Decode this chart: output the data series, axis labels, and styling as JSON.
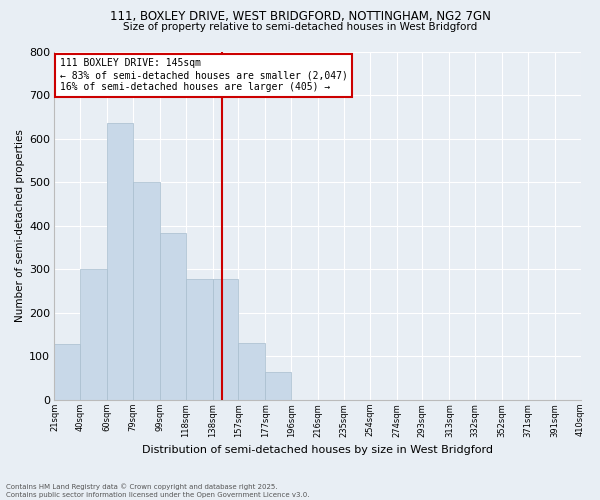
{
  "title_line1": "111, BOXLEY DRIVE, WEST BRIDGFORD, NOTTINGHAM, NG2 7GN",
  "title_line2": "Size of property relative to semi-detached houses in West Bridgford",
  "xlabel": "Distribution of semi-detached houses by size in West Bridgford",
  "ylabel": "Number of semi-detached properties",
  "footnote": "Contains HM Land Registry data © Crown copyright and database right 2025.\nContains public sector information licensed under the Open Government Licence v3.0.",
  "bin_labels": [
    "21sqm",
    "40sqm",
    "60sqm",
    "79sqm",
    "99sqm",
    "118sqm",
    "138sqm",
    "157sqm",
    "177sqm",
    "196sqm",
    "216sqm",
    "235sqm",
    "254sqm",
    "274sqm",
    "293sqm",
    "313sqm",
    "332sqm",
    "352sqm",
    "371sqm",
    "391sqm",
    "410sqm"
  ],
  "bin_edges": [
    21,
    40,
    60,
    79,
    99,
    118,
    138,
    157,
    177,
    196,
    216,
    235,
    254,
    274,
    293,
    313,
    332,
    352,
    371,
    391,
    410
  ],
  "bar_values": [
    128,
    300,
    635,
    500,
    383,
    278,
    278,
    130,
    65,
    0,
    0,
    0,
    0,
    0,
    0,
    0,
    0,
    0,
    0,
    0
  ],
  "property_size": 145,
  "pct_smaller": 83,
  "count_smaller": 2047,
  "pct_larger": 16,
  "count_larger": 405,
  "bar_color": "#c8d8e8",
  "bar_edge_color": "#a8bece",
  "vline_color": "#cc0000",
  "annotation_box_color": "#cc0000",
  "background_color": "#e8eef4",
  "ylim": [
    0,
    800
  ],
  "yticks": [
    0,
    100,
    200,
    300,
    400,
    500,
    600,
    700,
    800
  ]
}
